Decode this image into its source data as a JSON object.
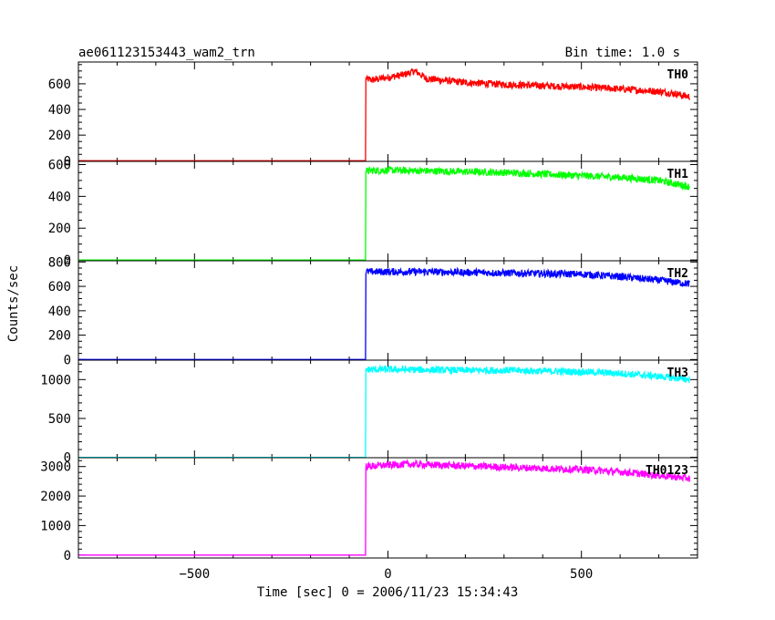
{
  "header": {
    "title": "ae061123153443_wam2_trn",
    "bin_time": "Bin time: 1.0 s"
  },
  "chart_data": {
    "type": "line",
    "title": "ae061123153443_wam2_trn",
    "xlabel": "Time [sec] 0 = 2006/11/23 15:34:43",
    "ylabel": "Counts/sec",
    "xlim": [
      -800,
      800
    ],
    "xticks": [
      -500,
      0,
      500
    ],
    "grid": false,
    "panels": [
      {
        "name": "TH0",
        "color": "#ff0000",
        "ylim": [
          -5,
          770
        ],
        "yticks": [
          0,
          200,
          400,
          600
        ],
        "x": [
          -800,
          -58,
          -58,
          -40,
          0,
          40,
          70,
          100,
          200,
          300,
          400,
          500,
          600,
          700,
          750,
          760,
          780
        ],
        "y": [
          0,
          0,
          640,
          630,
          650,
          670,
          700,
          640,
          610,
          595,
          585,
          575,
          560,
          540,
          520,
          510,
          500
        ]
      },
      {
        "name": "TH1",
        "color": "#00ff00",
        "ylim": [
          -5,
          620
        ],
        "yticks": [
          0,
          200,
          400,
          600
        ],
        "x": [
          -800,
          -58,
          -58,
          0,
          100,
          200,
          300,
          400,
          500,
          600,
          700,
          780
        ],
        "y": [
          0,
          0,
          560,
          565,
          560,
          555,
          550,
          540,
          530,
          520,
          500,
          460
        ]
      },
      {
        "name": "TH2",
        "color": "#0000ff",
        "ylim": [
          -5,
          810
        ],
        "yticks": [
          0,
          200,
          400,
          600,
          800
        ],
        "x": [
          -800,
          -58,
          -58,
          0,
          100,
          200,
          300,
          400,
          500,
          600,
          700,
          780
        ],
        "y": [
          0,
          0,
          720,
          720,
          720,
          715,
          710,
          705,
          700,
          680,
          650,
          620
        ]
      },
      {
        "name": "TH3",
        "color": "#00ffff",
        "ylim": [
          -5,
          1250
        ],
        "yticks": [
          0,
          500,
          1000
        ],
        "x": [
          -800,
          -58,
          -58,
          0,
          100,
          200,
          300,
          400,
          500,
          600,
          700,
          780
        ],
        "y": [
          0,
          0,
          1130,
          1130,
          1125,
          1120,
          1120,
          1110,
          1100,
          1080,
          1040,
          1000
        ]
      },
      {
        "name": "TH0123",
        "color": "#ff00ff",
        "ylim": [
          -100,
          3300
        ],
        "yticks": [
          0,
          1000,
          2000,
          3000
        ],
        "x": [
          -800,
          -58,
          -58,
          0,
          50,
          100,
          200,
          300,
          400,
          500,
          600,
          700,
          780
        ],
        "y": [
          0,
          0,
          3000,
          3050,
          3080,
          3060,
          3020,
          2980,
          2940,
          2900,
          2820,
          2700,
          2600
        ]
      }
    ]
  }
}
